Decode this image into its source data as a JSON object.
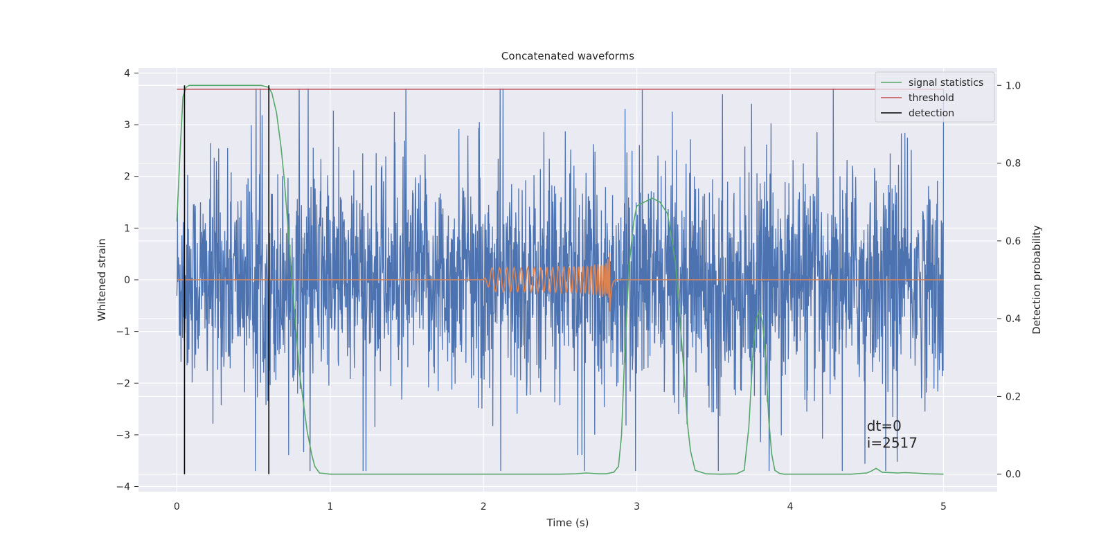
{
  "chart_data": {
    "type": "line",
    "title": "Concatenated waveforms",
    "xlabel": "Time (s)",
    "ylabel": "Whitened strain",
    "y2label": "Detection probability",
    "xlim": [
      -0.25,
      5.35
    ],
    "ylim": [
      -4.1,
      4.1
    ],
    "y2lim": [
      -0.045,
      1.045
    ],
    "xticks": [
      "0",
      "1",
      "2",
      "3",
      "4",
      "5"
    ],
    "yticks": [
      "−4",
      "−3",
      "−2",
      "−1",
      "0",
      "1",
      "2",
      "3",
      "4"
    ],
    "y2ticks": [
      "0.0",
      "0.2",
      "0.4",
      "0.6",
      "0.8",
      "1.0"
    ],
    "grid": true,
    "legend_position": "top-right",
    "legend": [
      "signal statistics",
      "threshold",
      "detection"
    ],
    "series": [
      {
        "name": "whitened strain",
        "axis": "left",
        "color": "#4c72b0",
        "description_type": "noise",
        "x_range": [
          0,
          5
        ],
        "y_range_approx": [
          -3.7,
          3.7
        ]
      },
      {
        "name": "injected waveform",
        "axis": "left",
        "color": "#dd8452",
        "description_type": "chirp",
        "x_range": [
          0,
          5
        ],
        "chirp_start": 2.0,
        "merger": 2.83,
        "peak_amplitude": 0.65
      },
      {
        "name": "signal statistics",
        "axis": "right",
        "color": "#55a868",
        "x": [
          0.0,
          0.02,
          0.04,
          0.06,
          0.08,
          0.1,
          0.2,
          0.3,
          0.4,
          0.5,
          0.55,
          0.6,
          0.62,
          0.65,
          0.68,
          0.7,
          0.72,
          0.75,
          0.78,
          0.8,
          0.85,
          0.88,
          0.9,
          0.93,
          1.0,
          1.5,
          2.0,
          2.5,
          2.6,
          2.67,
          2.75,
          2.8,
          2.85,
          2.88,
          2.9,
          2.92,
          2.95,
          2.98,
          3.0,
          3.05,
          3.1,
          3.15,
          3.2,
          3.25,
          3.3,
          3.33,
          3.35,
          3.38,
          3.45,
          3.55,
          3.65,
          3.7,
          3.73,
          3.76,
          3.78,
          3.8,
          3.82,
          3.84,
          3.86,
          3.88,
          3.9,
          3.93,
          3.96,
          4.0,
          4.2,
          4.4,
          4.5,
          4.53,
          4.56,
          4.6,
          4.7,
          4.75,
          4.8,
          4.9,
          5.0
        ],
        "y": [
          0.65,
          0.82,
          0.97,
          0.995,
          1.0,
          1.0,
          1.0,
          1.0,
          1.0,
          1.0,
          1.0,
          0.995,
          0.98,
          0.93,
          0.84,
          0.76,
          0.66,
          0.5,
          0.36,
          0.26,
          0.11,
          0.05,
          0.02,
          0.003,
          0.0,
          0.0,
          0.0,
          0.0,
          0.001,
          0.003,
          0.001,
          0.001,
          0.005,
          0.02,
          0.1,
          0.3,
          0.54,
          0.65,
          0.69,
          0.7,
          0.71,
          0.7,
          0.67,
          0.55,
          0.3,
          0.13,
          0.06,
          0.01,
          0.001,
          0.0,
          0.001,
          0.01,
          0.12,
          0.33,
          0.4,
          0.42,
          0.39,
          0.3,
          0.14,
          0.05,
          0.01,
          0.002,
          0.0,
          0.0,
          0.0,
          0.0,
          0.003,
          0.008,
          0.015,
          0.005,
          0.003,
          0.004,
          0.003,
          0.001,
          0.0
        ]
      },
      {
        "name": "threshold",
        "axis": "right",
        "color": "#c44e52",
        "x": [
          0.0,
          5.0
        ],
        "y": [
          0.99,
          0.99
        ]
      },
      {
        "name": "detection",
        "axis": "right",
        "color": "#000000",
        "x": [
          0.05,
          0.6
        ],
        "y_span": [
          0.0,
          1.0
        ]
      }
    ],
    "annotations": [
      {
        "text": "dt=0",
        "x": 4.5,
        "y": -2.92
      },
      {
        "text": "i=2517",
        "x": 4.5,
        "y": -3.25
      }
    ]
  }
}
